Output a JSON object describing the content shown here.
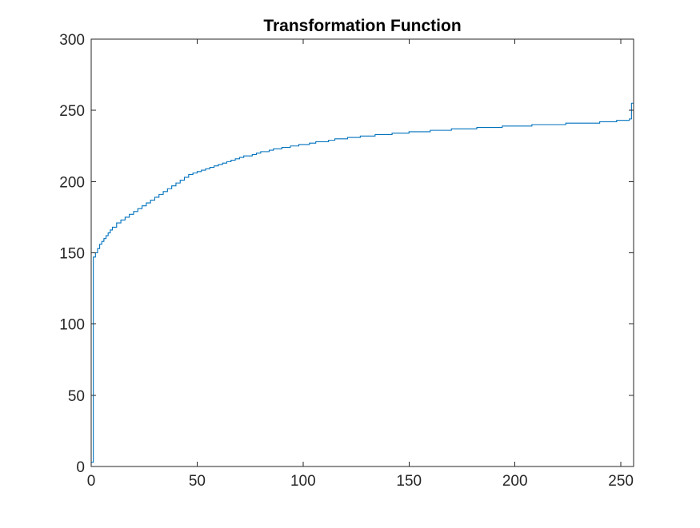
{
  "chart_data": {
    "type": "line",
    "title": "Transformation Function",
    "xlabel": "",
    "ylabel": "",
    "xlim": [
      0,
      256
    ],
    "ylim": [
      0,
      300
    ],
    "x_ticks": [
      0,
      50,
      100,
      150,
      200,
      250
    ],
    "y_ticks": [
      0,
      50,
      100,
      150,
      200,
      250,
      300
    ],
    "grid": false,
    "legend": "none",
    "series": [
      {
        "color": "#0072BD",
        "step": "post",
        "x": [
          0,
          1,
          2,
          3,
          4,
          5,
          6,
          7,
          8,
          9,
          10,
          12,
          14,
          16,
          18,
          20,
          22,
          24,
          26,
          28,
          30,
          32,
          34,
          36,
          38,
          40,
          42,
          44,
          46,
          48,
          50,
          52,
          54,
          56,
          58,
          60,
          62,
          64,
          66,
          68,
          70,
          72,
          74,
          76,
          78,
          80,
          82,
          84,
          86,
          88,
          90,
          92,
          94,
          96,
          98,
          100,
          103,
          106,
          109,
          112,
          115,
          118,
          121,
          124,
          127,
          130,
          134,
          138,
          142,
          146,
          150,
          155,
          160,
          165,
          170,
          176,
          182,
          188,
          194,
          200,
          208,
          216,
          224,
          232,
          240,
          248,
          254,
          255
        ],
        "y": [
          3,
          147,
          150,
          153,
          156,
          158,
          160,
          162,
          164,
          166,
          168,
          171,
          173,
          175,
          177,
          179,
          181,
          183,
          185,
          187,
          189,
          191,
          193,
          195,
          197,
          199,
          201,
          203,
          205,
          206,
          207,
          208,
          209,
          210,
          211,
          212,
          213,
          214,
          215,
          216,
          217,
          218,
          218,
          219,
          220,
          221,
          221,
          222,
          223,
          223,
          224,
          224,
          225,
          225,
          226,
          226,
          227,
          228,
          228,
          229,
          230,
          230,
          231,
          231,
          232,
          232,
          233,
          233,
          234,
          234,
          235,
          235,
          236,
          236,
          237,
          237,
          238,
          238,
          239,
          239,
          240,
          240,
          241,
          241,
          242,
          243,
          244,
          255
        ]
      }
    ]
  }
}
